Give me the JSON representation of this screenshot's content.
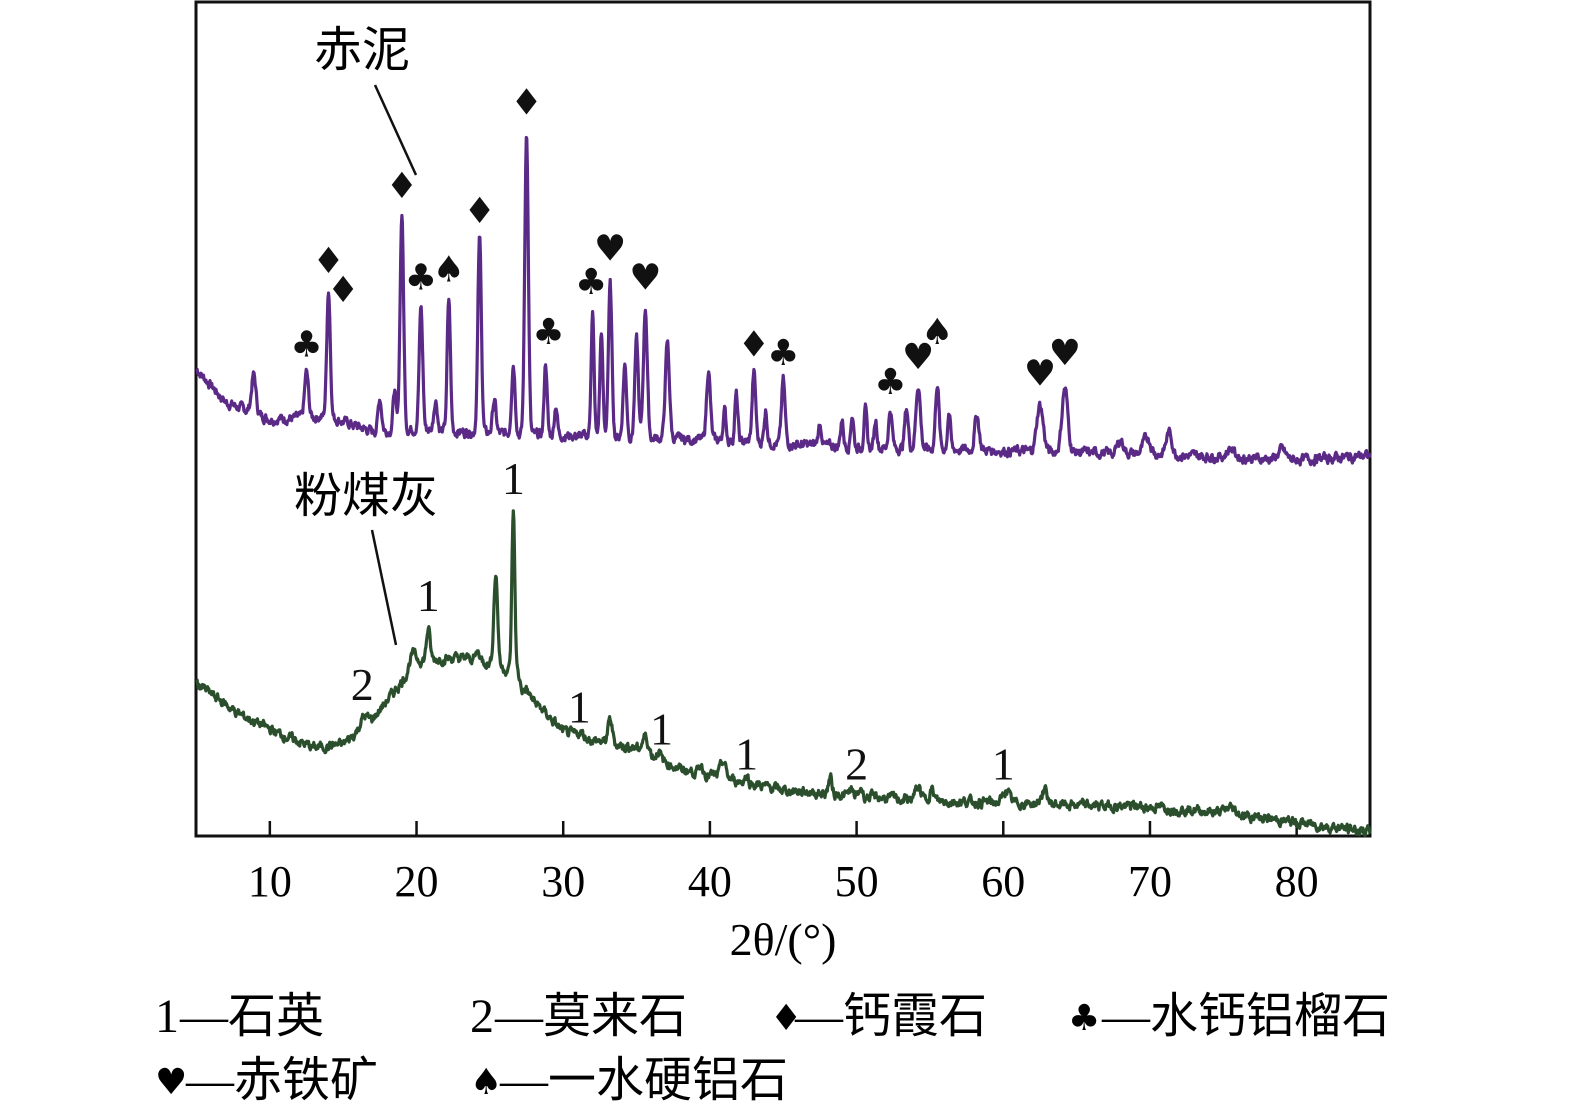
{
  "chart_data": {
    "type": "line",
    "title": "",
    "xlabel": "2θ/(°)",
    "ylabel": "",
    "xlim": [
      5,
      85
    ],
    "ylim": [
      0,
      100
    ],
    "xticks": [
      10,
      20,
      30,
      40,
      50,
      60,
      70,
      80
    ],
    "grid": false,
    "series": [
      {
        "name": "赤泥",
        "color": "#5b2a86",
        "baseline": [
          [
            5,
            56
          ],
          [
            7,
            52
          ],
          [
            10,
            50
          ],
          [
            14,
            50.3
          ],
          [
            17,
            48.5
          ],
          [
            20,
            48.8
          ],
          [
            25,
            48.3
          ],
          [
            30,
            48
          ],
          [
            40,
            47.5
          ],
          [
            50,
            46.6
          ],
          [
            60,
            46.2
          ],
          [
            70,
            45.8
          ],
          [
            80,
            45.1
          ],
          [
            85,
            45.6
          ]
        ],
        "peaks": [
          [
            8.9,
            55.3,
            0.15
          ],
          [
            12.5,
            55.6,
            0.13
          ],
          [
            14.0,
            65.5,
            0.12
          ],
          [
            17.5,
            52.5,
            0.12
          ],
          [
            18.5,
            53.5,
            0.1
          ],
          [
            19.0,
            74.7,
            0.12
          ],
          [
            20.3,
            63.4,
            0.12
          ],
          [
            21.3,
            52.3,
            0.12
          ],
          [
            22.2,
            64.3,
            0.11
          ],
          [
            24.3,
            71.7,
            0.12
          ],
          [
            25.3,
            52.3,
            0.12
          ],
          [
            26.6,
            56.7,
            0.12
          ],
          [
            27.5,
            84.7,
            0.12
          ],
          [
            28.8,
            56.8,
            0.1
          ],
          [
            29.5,
            51.7,
            0.1
          ],
          [
            32.0,
            62.8,
            0.1
          ],
          [
            32.6,
            60.5,
            0.1
          ],
          [
            33.2,
            66.1,
            0.12
          ],
          [
            34.2,
            56.5,
            0.12
          ],
          [
            35.0,
            59.5,
            0.12
          ],
          [
            35.6,
            63.3,
            0.13
          ],
          [
            37.1,
            59.1,
            0.14
          ],
          [
            39.9,
            55.9,
            0.13
          ],
          [
            41.0,
            51.1,
            0.1
          ],
          [
            41.8,
            52.9,
            0.1
          ],
          [
            43.0,
            55.6,
            0.12
          ],
          [
            43.8,
            51.1,
            0.1
          ],
          [
            45.0,
            54.7,
            0.12
          ],
          [
            47.5,
            49.3,
            0.12
          ],
          [
            49.0,
            49.9,
            0.1
          ],
          [
            49.7,
            50.5,
            0.1
          ],
          [
            50.6,
            51.1,
            0.1
          ],
          [
            51.3,
            49.9,
            0.1
          ],
          [
            52.3,
            51.1,
            0.12
          ],
          [
            53.4,
            51.3,
            0.12
          ],
          [
            54.2,
            54.1,
            0.15
          ],
          [
            55.5,
            54.3,
            0.12
          ],
          [
            56.3,
            50.8,
            0.1
          ],
          [
            58.2,
            50.5,
            0.15
          ],
          [
            62.5,
            51.7,
            0.22
          ],
          [
            64.2,
            53.7,
            0.2
          ],
          [
            68.0,
            47.5,
            0.2
          ],
          [
            69.8,
            47.8,
            0.25
          ],
          [
            71.3,
            48.4,
            0.2
          ],
          [
            75.5,
            46.5,
            0.25
          ],
          [
            79.0,
            46.3,
            0.25
          ]
        ],
        "label": "赤泥",
        "annotations": [
          {
            "symbol": "♣",
            "x": 12.5,
            "y": 57.5
          },
          {
            "symbol": "♦",
            "x": 14.0,
            "y": 67.5
          },
          {
            "symbol": "♦",
            "x": 15.0,
            "y": 64
          },
          {
            "symbol": "♦",
            "x": 19.0,
            "y": 76.5
          },
          {
            "symbol": "♣",
            "x": 20.3,
            "y": 65.5
          },
          {
            "symbol": "♠",
            "x": 22.2,
            "y": 66.5
          },
          {
            "symbol": "♦",
            "x": 24.3,
            "y": 73.5
          },
          {
            "symbol": "♦",
            "x": 27.5,
            "y": 86.5
          },
          {
            "symbol": "♣",
            "x": 29.0,
            "y": 59
          },
          {
            "symbol": "♣",
            "x": 31.9,
            "y": 65
          },
          {
            "symbol": "♥",
            "x": 33.2,
            "y": 69
          },
          {
            "symbol": "♥",
            "x": 35.6,
            "y": 65.5
          },
          {
            "symbol": "♦",
            "x": 43.0,
            "y": 57.5
          },
          {
            "symbol": "♣",
            "x": 45.0,
            "y": 56.5
          },
          {
            "symbol": "♣",
            "x": 52.3,
            "y": 53
          },
          {
            "symbol": "♥",
            "x": 54.2,
            "y": 56
          },
          {
            "symbol": "♠",
            "x": 55.5,
            "y": 59
          },
          {
            "symbol": "♥",
            "x": 62.5,
            "y": 54
          },
          {
            "symbol": "♥",
            "x": 64.2,
            "y": 56.5
          }
        ]
      },
      {
        "name": "粉煤灰",
        "color": "#2b4f2c",
        "baseline": [
          [
            5,
            18.3
          ],
          [
            8,
            14.5
          ],
          [
            11,
            12
          ],
          [
            13,
            10.6
          ],
          [
            15,
            11
          ],
          [
            17,
            14
          ],
          [
            19,
            18.5
          ],
          [
            20,
            21
          ],
          [
            22,
            21.3
          ],
          [
            24,
            21.3
          ],
          [
            26.9,
            19.5
          ],
          [
            27.2,
            17.5
          ],
          [
            28,
            16.2
          ],
          [
            30,
            12.5
          ],
          [
            32,
            11.5
          ],
          [
            35,
            10.5
          ],
          [
            38,
            8
          ],
          [
            40,
            7.3
          ],
          [
            45,
            5.5
          ],
          [
            50,
            4.8
          ],
          [
            55,
            4.2
          ],
          [
            60,
            4
          ],
          [
            65,
            3.7
          ],
          [
            70,
            3.5
          ],
          [
            75,
            2.8
          ],
          [
            80,
            1.6
          ],
          [
            85,
            0.5
          ]
        ],
        "peaks": [
          [
            16.4,
            14.3,
            0.25
          ],
          [
            19.7,
            21.7,
            0.2
          ],
          [
            20.8,
            24.9,
            0.12
          ],
          [
            24.2,
            22.1,
            0.12
          ],
          [
            25.4,
            31.5,
            0.13
          ],
          [
            26.6,
            39.1,
            0.1
          ],
          [
            27.5,
            17.5,
            0.15
          ],
          [
            31.2,
            12.4,
            0.2
          ],
          [
            33.2,
            13.9,
            0.15
          ],
          [
            35.6,
            11.9,
            0.2
          ],
          [
            36.5,
            10.3,
            0.12
          ],
          [
            39.4,
            8.5,
            0.13
          ],
          [
            40.9,
            8.9,
            0.18
          ],
          [
            42.5,
            7.2,
            0.13
          ],
          [
            48.2,
            7.0,
            0.12
          ],
          [
            49.6,
            5.6,
            0.1
          ],
          [
            50.3,
            5.8,
            0.1
          ],
          [
            54.2,
            5.8,
            0.2
          ],
          [
            55.1,
            5.6,
            0.15
          ],
          [
            60.2,
            5.5,
            0.2
          ],
          [
            62.8,
            5.5,
            0.2
          ],
          [
            75.5,
            3.4,
            0.3
          ]
        ],
        "label": "粉煤灰",
        "annotations": [
          {
            "symbol": "1",
            "x": 26.6,
            "y": 41
          },
          {
            "symbol": "1",
            "x": 20.8,
            "y": 27
          },
          {
            "symbol": "2",
            "x": 16.3,
            "y": 16.3
          },
          {
            "symbol": "1",
            "x": 31.1,
            "y": 13.6
          },
          {
            "symbol": "1",
            "x": 36.7,
            "y": 11
          },
          {
            "symbol": "1",
            "x": 42.5,
            "y": 8
          },
          {
            "symbol": "2",
            "x": 50.0,
            "y": 6.8
          },
          {
            "symbol": "1",
            "x": 60.0,
            "y": 6.8
          }
        ]
      }
    ],
    "legend": {
      "placement": "bottom",
      "entries": [
        {
          "symbol": "1",
          "text": "—石英"
        },
        {
          "symbol": "2",
          "text": "—莫来石"
        },
        {
          "symbol": "♦",
          "text": "—钙霞石"
        },
        {
          "symbol": "♣",
          "text": "—水钙铝榴石"
        },
        {
          "symbol": "♥",
          "text": "—赤铁矿"
        },
        {
          "symbol": "♠",
          "text": "—一水硬铝石"
        }
      ]
    }
  }
}
